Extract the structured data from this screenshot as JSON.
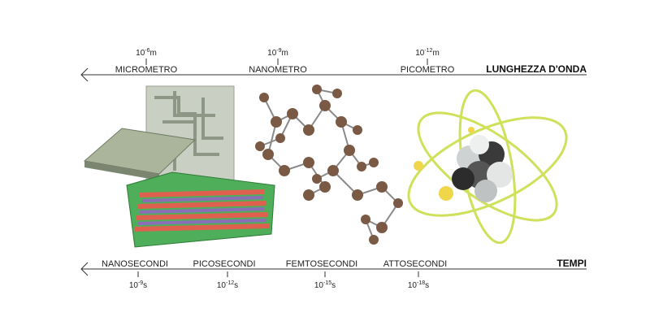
{
  "top_scale": {
    "title": "LUNGHEZZA D'ONDA",
    "ticks": [
      {
        "label": "MICROMETRO",
        "base": "10",
        "exponent": "-6",
        "unit": "m"
      },
      {
        "label": "NANOMETRO",
        "base": "10",
        "exponent": "-9",
        "unit": "m"
      },
      {
        "label": "PICOMETRO",
        "base": "10",
        "exponent": "-12",
        "unit": "m"
      }
    ]
  },
  "bottom_scale": {
    "title": "TEMPI",
    "ticks": [
      {
        "label": "NANOSECONDI",
        "base": "10",
        "exponent": "-9",
        "unit": "s"
      },
      {
        "label": "PICOSECONDI",
        "base": "10",
        "exponent": "-12",
        "unit": "s"
      },
      {
        "label": "FEMTOSECONDI",
        "base": "10",
        "exponent": "-15",
        "unit": "s"
      },
      {
        "label": "ATTOSECONDI",
        "base": "10",
        "exponent": "-18",
        "unit": "s"
      }
    ]
  }
}
